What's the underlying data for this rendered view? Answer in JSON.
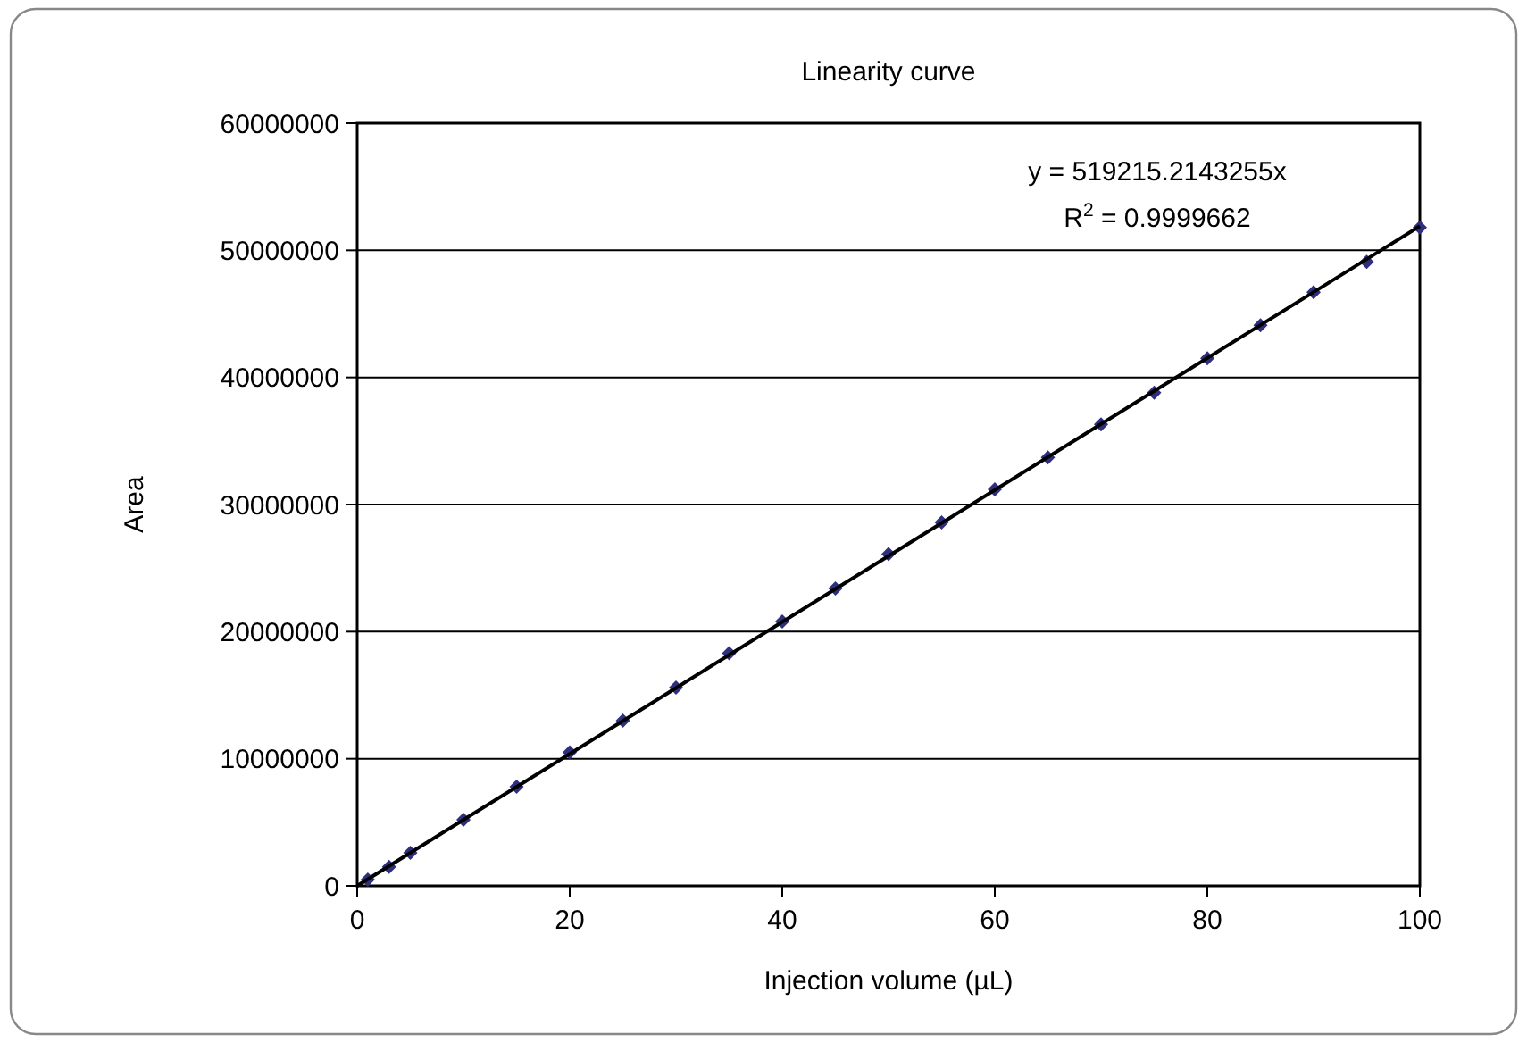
{
  "chart_data": {
    "type": "scatter",
    "title": "Linearity curve",
    "xlabel": "Injection volume (µL)",
    "ylabel": "Area",
    "xlim": [
      0,
      100
    ],
    "xticks": [
      0,
      20,
      40,
      60,
      80,
      100
    ],
    "ylim": [
      0,
      60000000
    ],
    "yticks": [
      0,
      10000000,
      20000000,
      30000000,
      40000000,
      50000000,
      60000000
    ],
    "grid": "y",
    "marker": "diamond",
    "series": [
      {
        "color": "#2f2f7f",
        "x": [
          1,
          3,
          5,
          10,
          15,
          20,
          25,
          30,
          35,
          40,
          45,
          50,
          55,
          60,
          65,
          70,
          75,
          80,
          85,
          90,
          95,
          100
        ],
        "values": [
          500000,
          1500000,
          2600000,
          5200000,
          7800000,
          10500000,
          13000000,
          15600000,
          18300000,
          20800000,
          23400000,
          26100000,
          28600000,
          31200000,
          33700000,
          36300000,
          38800000,
          41500000,
          44100000,
          46700000,
          49100000,
          51800000
        ]
      },
      {
        "type": "line",
        "color": "#000000",
        "x": [
          0,
          100
        ],
        "values": [
          0,
          51900000
        ],
        "line_style": "solid",
        "marker": "none"
      }
    ],
    "annotations": [
      "y = 519215.2143255x",
      "R$^{2}$ = 0.9999662"
    ]
  }
}
